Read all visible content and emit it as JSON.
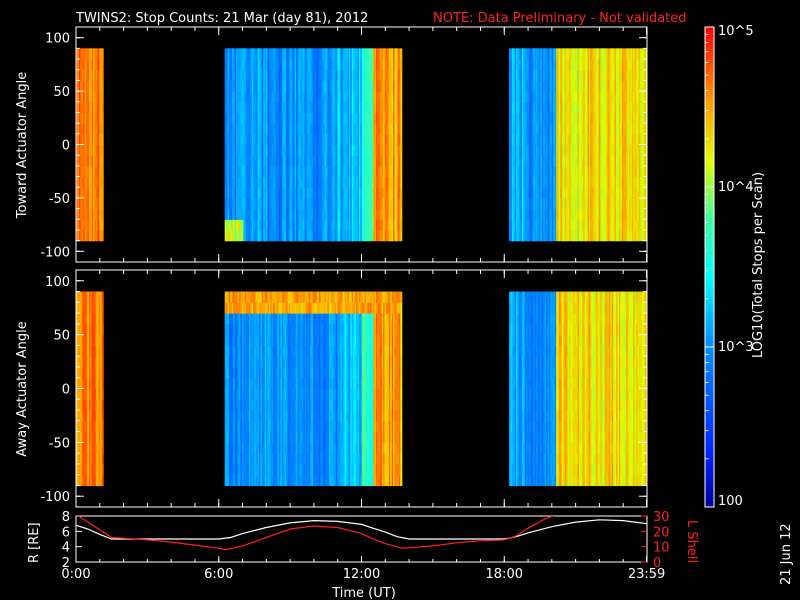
{
  "header": {
    "title": "TWINS2: Stop Counts: 21 Mar (day  81), 2012",
    "note": "NOTE: Data Preliminary - Not validated"
  },
  "colors": {
    "note": "#ff2020",
    "r_line": "#ffffff",
    "l_line": "#ff2020",
    "background": "#000000"
  },
  "side_stamp": "21 Jun 12",
  "chart_data": [
    {
      "type": "heatmap",
      "ylabel": "Toward Actuator Angle",
      "ylim": [
        -110,
        110
      ],
      "yticks": [
        100,
        50,
        0,
        -50,
        -100
      ],
      "xlim": [
        0,
        24
      ],
      "colorscale": "rainbow-log",
      "clim": [
        100,
        100000
      ],
      "data_segments_hours": [
        [
          0.0,
          1.15
        ],
        [
          6.25,
          13.7
        ],
        [
          18.2,
          24.0
        ]
      ],
      "angle_range": [
        -90,
        90
      ],
      "baseline_log_counts": [
        {
          "hours": [
            0.0,
            1.15
          ],
          "log10": 4.6
        },
        {
          "hours": [
            6.25,
            11.0
          ],
          "log10": 3.0
        },
        {
          "hours": [
            11.0,
            12.0
          ],
          "log10": 3.2
        },
        {
          "hours": [
            12.0,
            12.5
          ],
          "log10": 3.7
        },
        {
          "hours": [
            12.5,
            13.7
          ],
          "log10": 4.5
        },
        {
          "hours": [
            18.2,
            19.0
          ],
          "log10": 3.1
        },
        {
          "hours": [
            19.0,
            20.2
          ],
          "log10": 3.0
        },
        {
          "hours": [
            20.2,
            24.0
          ],
          "log10": 4.3
        }
      ]
    },
    {
      "type": "heatmap",
      "ylabel": "Away Actuator Angle",
      "ylim": [
        -110,
        110
      ],
      "yticks": [
        100,
        50,
        0,
        -50,
        -100
      ],
      "xlim": [
        0,
        24
      ],
      "colorscale": "rainbow-log",
      "clim": [
        100,
        100000
      ],
      "data_segments_hours": [
        [
          0.0,
          1.15
        ],
        [
          6.25,
          13.7
        ],
        [
          18.2,
          24.0
        ]
      ],
      "angle_range": [
        -90,
        90
      ],
      "baseline_log_counts": [
        {
          "hours": [
            0.0,
            1.15
          ],
          "log10": 4.6
        },
        {
          "hours": [
            6.25,
            11.0
          ],
          "log10": 3.0
        },
        {
          "hours": [
            11.0,
            12.0
          ],
          "log10": 3.2
        },
        {
          "hours": [
            12.0,
            12.5
          ],
          "log10": 3.7
        },
        {
          "hours": [
            12.5,
            13.7
          ],
          "log10": 4.5
        },
        {
          "hours": [
            18.2,
            19.0
          ],
          "log10": 3.1
        },
        {
          "hours": [
            19.0,
            20.2
          ],
          "log10": 3.0
        },
        {
          "hours": [
            20.2,
            24.0
          ],
          "log10": 4.3
        }
      ],
      "high_band_angle": [
        70,
        90
      ]
    },
    {
      "type": "line",
      "ylabel_left": "R [RE]",
      "ylabel_right": "L Shell",
      "xlabel": "Time (UT)",
      "xlim": [
        0,
        24
      ],
      "xticks": [
        0,
        6,
        12,
        18,
        23.983
      ],
      "xtick_labels": [
        "0:00",
        "6:00",
        "12:00",
        "18:00",
        "23:59"
      ],
      "ylim_left": [
        2,
        8
      ],
      "yticks_left": [
        2,
        4,
        6,
        8
      ],
      "ylim_right": [
        0,
        30
      ],
      "yticks_right": [
        0,
        10,
        20,
        30
      ],
      "series": [
        {
          "axis": "left",
          "x": [
            0,
            0.5,
            1,
            1.5,
            2,
            3,
            4,
            5,
            6,
            6.5,
            7,
            8,
            9,
            10,
            11,
            12,
            12.5,
            13,
            13.5,
            14,
            15,
            16,
            17,
            18,
            18.5,
            19,
            20,
            21,
            22,
            23,
            24
          ],
          "y": [
            6.8,
            6.3,
            5.6,
            5.0,
            5.0,
            5.0,
            5.0,
            5.0,
            5.0,
            5.2,
            5.7,
            6.5,
            7.1,
            7.4,
            7.3,
            6.9,
            6.4,
            5.9,
            5.3,
            5.0,
            5.0,
            5.0,
            5.0,
            5.0,
            5.3,
            5.8,
            6.6,
            7.2,
            7.5,
            7.4,
            7.0
          ]
        },
        {
          "axis": "right",
          "x": [
            0,
            0.7,
            1.5,
            2,
            3,
            4,
            5,
            6,
            6.3,
            7,
            8,
            9,
            10,
            11,
            12,
            12.5,
            13,
            13.7,
            14,
            15,
            16,
            17,
            18,
            18.5,
            19,
            19.7,
            20.2
          ],
          "y": [
            31,
            24,
            16,
            15.5,
            14.5,
            13,
            11,
            9,
            8,
            10.5,
            16,
            21.5,
            23.5,
            22.5,
            18.5,
            15,
            12,
            9,
            9.3,
            10.5,
            12.5,
            13.8,
            14.5,
            17,
            22,
            28,
            31
          ]
        }
      ]
    }
  ],
  "colorbar": {
    "label": "LOG10(Total Stops per Scan)",
    "tick_labels": [
      "10^5",
      "10^4",
      "10^3",
      "100"
    ],
    "tick_values_log10": [
      5,
      4,
      3,
      2
    ],
    "range_log10": [
      2,
      5
    ]
  }
}
